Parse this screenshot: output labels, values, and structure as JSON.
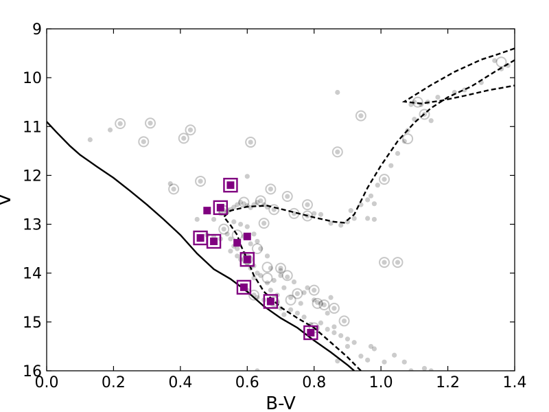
{
  "chart_data": {
    "type": "scatter",
    "title": "",
    "xlabel": "B-V",
    "ylabel": "V",
    "xlim": [
      0.0,
      1.4
    ],
    "ylim": [
      16,
      9
    ],
    "y_inverted": true,
    "grid": false,
    "xticks": [
      0.0,
      0.2,
      0.4,
      0.6,
      0.8,
      1.0,
      1.2,
      1.4
    ],
    "xtick_labels": [
      "0.0",
      "0.2",
      "0.4",
      "0.6",
      "0.8",
      "1.0",
      "1.2",
      "1.4"
    ],
    "yticks": [
      9,
      10,
      11,
      12,
      13,
      14,
      15,
      16
    ],
    "ytick_labels": [
      "9",
      "10",
      "11",
      "12",
      "13",
      "14",
      "15",
      "16"
    ],
    "colors": {
      "highlight": "#800080",
      "field": "#555555",
      "line": "#000000"
    },
    "series": [
      {
        "name": "field-stars",
        "style": "gray-dot",
        "points": [
          [
            0.13,
            11.27
          ],
          [
            0.19,
            11.07
          ],
          [
            0.22,
            10.94
          ],
          [
            0.31,
            10.93
          ],
          [
            0.29,
            11.31
          ],
          [
            0.41,
            11.24
          ],
          [
            0.43,
            11.07
          ],
          [
            0.61,
            11.32
          ],
          [
            0.46,
            12.12
          ],
          [
            0.37,
            12.17
          ],
          [
            0.38,
            12.28
          ],
          [
            0.6,
            12.02
          ],
          [
            0.87,
            10.3
          ],
          [
            0.94,
            10.78
          ],
          [
            0.87,
            11.52
          ],
          [
            0.45,
            12.9
          ],
          [
            0.5,
            12.9
          ],
          [
            0.52,
            12.78
          ],
          [
            0.53,
            12.72
          ],
          [
            0.54,
            12.75
          ],
          [
            0.55,
            12.7
          ],
          [
            0.56,
            12.65
          ],
          [
            0.57,
            12.6
          ],
          [
            0.58,
            12.55
          ],
          [
            0.59,
            12.58
          ],
          [
            0.6,
            12.62
          ],
          [
            0.61,
            12.66
          ],
          [
            0.62,
            12.6
          ],
          [
            0.63,
            12.55
          ],
          [
            0.64,
            12.52
          ],
          [
            0.65,
            12.6
          ],
          [
            0.66,
            12.65
          ],
          [
            0.68,
            12.7
          ],
          [
            0.67,
            12.28
          ],
          [
            0.72,
            12.43
          ],
          [
            0.78,
            12.6
          ],
          [
            0.74,
            12.78
          ],
          [
            0.78,
            12.83
          ],
          [
            0.8,
            12.78
          ],
          [
            0.82,
            12.8
          ],
          [
            0.65,
            12.98
          ],
          [
            0.85,
            12.98
          ],
          [
            0.88,
            13.02
          ],
          [
            0.9,
            12.95
          ],
          [
            0.92,
            12.88
          ],
          [
            0.91,
            12.72
          ],
          [
            0.94,
            12.6
          ],
          [
            0.96,
            12.5
          ],
          [
            0.97,
            12.42
          ],
          [
            0.98,
            12.58
          ],
          [
            0.96,
            12.88
          ],
          [
            0.98,
            12.9
          ],
          [
            0.99,
            12.2
          ],
          [
            1.01,
            12.08
          ],
          [
            1.03,
            11.8
          ],
          [
            1.05,
            11.55
          ],
          [
            1.07,
            11.3
          ],
          [
            1.08,
            11.08
          ],
          [
            1.1,
            10.85
          ],
          [
            1.09,
            10.55
          ],
          [
            1.1,
            10.5
          ],
          [
            1.12,
            10.55
          ],
          [
            1.13,
            10.75
          ],
          [
            1.15,
            10.88
          ],
          [
            1.14,
            10.5
          ],
          [
            1.17,
            10.4
          ],
          [
            1.22,
            10.3
          ],
          [
            1.25,
            10.25
          ],
          [
            1.3,
            10.1
          ],
          [
            1.34,
            9.65
          ],
          [
            1.36,
            9.82
          ],
          [
            1.38,
            9.75
          ],
          [
            1.01,
            13.78
          ],
          [
            1.05,
            13.78
          ],
          [
            0.53,
            13.1
          ],
          [
            0.54,
            13.2
          ],
          [
            0.55,
            13.3
          ],
          [
            0.56,
            13.45
          ],
          [
            0.55,
            13.55
          ],
          [
            0.57,
            13.5
          ],
          [
            0.57,
            13.65
          ],
          [
            0.58,
            13.72
          ],
          [
            0.59,
            13.6
          ],
          [
            0.6,
            13.8
          ],
          [
            0.61,
            13.9
          ],
          [
            0.62,
            13.85
          ],
          [
            0.63,
            14.0
          ],
          [
            0.62,
            14.1
          ],
          [
            0.64,
            14.05
          ],
          [
            0.64,
            13.5
          ],
          [
            0.63,
            13.35
          ],
          [
            0.62,
            13.2
          ],
          [
            0.6,
            13.05
          ],
          [
            0.58,
            13.0
          ],
          [
            0.56,
            12.95
          ],
          [
            0.59,
            13.25
          ],
          [
            0.61,
            13.4
          ],
          [
            0.66,
            13.65
          ],
          [
            0.67,
            13.9
          ],
          [
            0.66,
            14.2
          ],
          [
            0.68,
            14.15
          ],
          [
            0.7,
            14.05
          ],
          [
            0.72,
            14.08
          ],
          [
            0.7,
            13.9
          ],
          [
            0.67,
            14.35
          ],
          [
            0.69,
            14.45
          ],
          [
            0.71,
            14.3
          ],
          [
            0.73,
            14.5
          ],
          [
            0.75,
            14.42
          ],
          [
            0.77,
            14.4
          ],
          [
            0.78,
            14.3
          ],
          [
            0.8,
            14.35
          ],
          [
            0.81,
            14.6
          ],
          [
            0.82,
            14.62
          ],
          [
            0.83,
            14.65
          ],
          [
            0.85,
            14.5
          ],
          [
            0.86,
            14.72
          ],
          [
            0.73,
            14.75
          ],
          [
            0.75,
            14.82
          ],
          [
            0.77,
            14.9
          ],
          [
            0.79,
            15.05
          ],
          [
            0.8,
            15.12
          ],
          [
            0.82,
            15.02
          ],
          [
            0.84,
            15.15
          ],
          [
            0.86,
            15.22
          ],
          [
            0.88,
            15.28
          ],
          [
            0.89,
            14.98
          ],
          [
            0.9,
            15.35
          ],
          [
            0.92,
            15.42
          ],
          [
            0.94,
            15.7
          ],
          [
            0.96,
            15.78
          ],
          [
            0.97,
            15.5
          ],
          [
            0.98,
            15.55
          ],
          [
            1.01,
            15.82
          ],
          [
            1.04,
            15.68
          ],
          [
            1.07,
            15.82
          ],
          [
            1.09,
            16.0
          ],
          [
            1.13,
            15.95
          ],
          [
            1.15,
            16.0
          ],
          [
            0.6,
            14.35
          ],
          [
            0.62,
            14.45
          ],
          [
            0.63,
            14.5
          ],
          [
            0.65,
            14.55
          ],
          [
            0.69,
            14.6
          ],
          [
            0.7,
            14.72
          ],
          [
            0.71,
            14.85
          ],
          [
            0.63,
            16.0
          ],
          [
            0.46,
            13.3
          ],
          [
            0.48,
            13.22
          ],
          [
            0.5,
            13.25
          ],
          [
            0.52,
            13.3
          ],
          [
            0.7,
            13.95
          ],
          [
            0.74,
            14.18
          ],
          [
            0.76,
            14.62
          ],
          [
            0.8,
            14.55
          ],
          [
            0.84,
            14.82
          ],
          [
            0.86,
            15.1
          ],
          [
            0.87,
            15.8
          ],
          [
            0.9,
            15.5
          ]
        ]
      },
      {
        "name": "field-stars-circled",
        "style": "gray-ring",
        "points": [
          [
            0.22,
            10.94
          ],
          [
            0.31,
            10.93
          ],
          [
            0.29,
            11.31
          ],
          [
            0.41,
            11.24
          ],
          [
            0.43,
            11.07
          ],
          [
            0.61,
            11.32
          ],
          [
            0.46,
            12.12
          ],
          [
            0.38,
            12.28
          ],
          [
            0.94,
            10.78
          ],
          [
            0.87,
            11.52
          ],
          [
            0.53,
            12.72
          ],
          [
            0.59,
            12.55
          ],
          [
            0.64,
            12.52
          ],
          [
            0.68,
            12.7
          ],
          [
            0.67,
            12.28
          ],
          [
            0.72,
            12.43
          ],
          [
            0.78,
            12.6
          ],
          [
            0.74,
            12.78
          ],
          [
            0.78,
            12.83
          ],
          [
            0.65,
            12.98
          ],
          [
            1.01,
            12.08
          ],
          [
            1.08,
            11.25
          ],
          [
            1.13,
            10.75
          ],
          [
            1.11,
            10.5
          ],
          [
            1.36,
            9.68
          ],
          [
            1.01,
            13.78
          ],
          [
            1.05,
            13.78
          ],
          [
            0.53,
            13.1
          ],
          [
            0.63,
            13.5
          ],
          [
            0.6,
            13.72
          ],
          [
            0.66,
            13.88
          ],
          [
            0.66,
            14.1
          ],
          [
            0.7,
            13.9
          ],
          [
            0.72,
            14.05
          ],
          [
            0.62,
            14.45
          ],
          [
            0.68,
            14.58
          ],
          [
            0.75,
            14.42
          ],
          [
            0.8,
            14.35
          ],
          [
            0.81,
            14.62
          ],
          [
            0.83,
            14.65
          ],
          [
            0.86,
            14.72
          ],
          [
            0.73,
            14.55
          ],
          [
            0.89,
            14.98
          ],
          [
            0.8,
            15.12
          ],
          [
            0.57,
            13.22
          ]
        ]
      },
      {
        "name": "members-filled",
        "style": "purple-square",
        "points": [
          [
            0.55,
            12.2
          ],
          [
            0.48,
            12.72
          ],
          [
            0.52,
            12.66
          ],
          [
            0.6,
            13.25
          ],
          [
            0.57,
            13.38
          ],
          [
            0.46,
            13.28
          ],
          [
            0.5,
            13.35
          ],
          [
            0.6,
            13.72
          ],
          [
            0.59,
            14.29
          ],
          [
            0.67,
            14.58
          ],
          [
            0.79,
            15.22
          ]
        ]
      },
      {
        "name": "members-boxed",
        "style": "purple-box",
        "points": [
          [
            0.55,
            12.2
          ],
          [
            0.52,
            12.66
          ],
          [
            0.46,
            13.28
          ],
          [
            0.5,
            13.35
          ],
          [
            0.6,
            13.72
          ],
          [
            0.59,
            14.29
          ],
          [
            0.67,
            14.58
          ],
          [
            0.79,
            15.22
          ]
        ]
      }
    ],
    "lines": [
      {
        "name": "zams",
        "style": "solid",
        "points": [
          [
            0.0,
            10.9
          ],
          [
            0.03,
            11.12
          ],
          [
            0.07,
            11.4
          ],
          [
            0.1,
            11.58
          ],
          [
            0.15,
            11.82
          ],
          [
            0.2,
            12.05
          ],
          [
            0.25,
            12.32
          ],
          [
            0.3,
            12.6
          ],
          [
            0.35,
            12.9
          ],
          [
            0.4,
            13.22
          ],
          [
            0.45,
            13.6
          ],
          [
            0.5,
            13.92
          ],
          [
            0.55,
            14.12
          ],
          [
            0.6,
            14.38
          ],
          [
            0.65,
            14.68
          ],
          [
            0.7,
            14.92
          ],
          [
            0.75,
            15.12
          ],
          [
            0.8,
            15.38
          ],
          [
            0.85,
            15.62
          ],
          [
            0.9,
            15.88
          ],
          [
            0.92,
            16.0
          ]
        ]
      },
      {
        "name": "isochrone",
        "style": "dashed",
        "points": [
          [
            0.94,
            16.0
          ],
          [
            0.9,
            15.72
          ],
          [
            0.85,
            15.42
          ],
          [
            0.8,
            15.12
          ],
          [
            0.75,
            14.92
          ],
          [
            0.7,
            14.7
          ],
          [
            0.65,
            14.38
          ],
          [
            0.62,
            14.05
          ],
          [
            0.6,
            13.72
          ],
          [
            0.58,
            13.42
          ],
          [
            0.57,
            13.22
          ],
          [
            0.55,
            13.02
          ],
          [
            0.53,
            12.85
          ],
          [
            0.55,
            12.72
          ],
          [
            0.6,
            12.64
          ],
          [
            0.66,
            12.62
          ],
          [
            0.72,
            12.72
          ],
          [
            0.8,
            12.86
          ],
          [
            0.86,
            12.95
          ],
          [
            0.89,
            12.97
          ],
          [
            0.92,
            12.8
          ],
          [
            0.96,
            12.25
          ],
          [
            1.0,
            11.8
          ],
          [
            1.05,
            11.3
          ],
          [
            1.1,
            10.92
          ],
          [
            1.15,
            10.62
          ],
          [
            1.2,
            10.4
          ],
          [
            1.27,
            10.18
          ],
          [
            1.34,
            9.88
          ],
          [
            1.38,
            9.72
          ],
          [
            1.4,
            9.64
          ]
        ]
      },
      {
        "name": "isochrone-branch",
        "style": "dashed",
        "points": [
          [
            1.4,
            9.4
          ],
          [
            1.35,
            9.52
          ],
          [
            1.3,
            9.63
          ],
          [
            1.22,
            9.88
          ],
          [
            1.15,
            10.15
          ],
          [
            1.07,
            10.49
          ],
          [
            1.12,
            10.53
          ],
          [
            1.18,
            10.47
          ],
          [
            1.25,
            10.37
          ],
          [
            1.32,
            10.26
          ],
          [
            1.4,
            10.16
          ]
        ]
      }
    ]
  }
}
